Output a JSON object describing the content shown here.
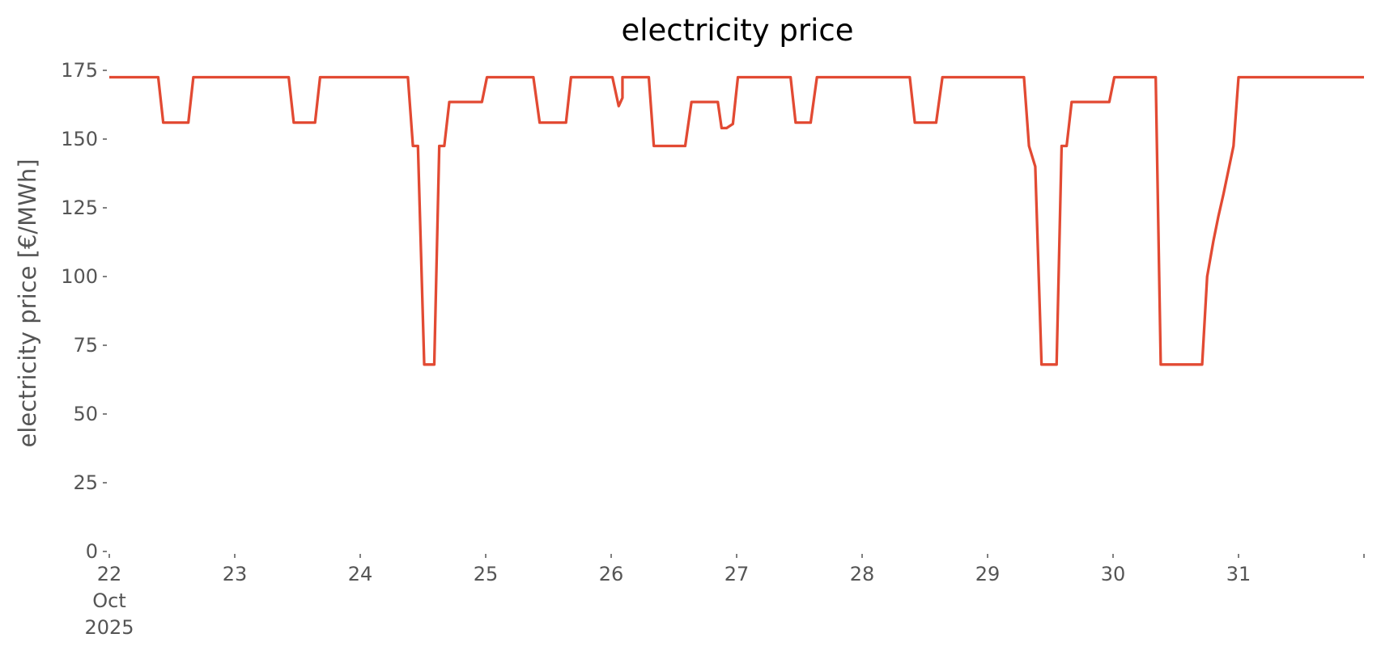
{
  "chart_data": {
    "type": "line",
    "title": "electricity price",
    "y_label": "electricity price [€/MWh]",
    "x": [
      22,
      22.39,
      22.43,
      22.63,
      22.67,
      23.43,
      23.47,
      23.64,
      23.68,
      24.38,
      24.42,
      24.46,
      24.51,
      24.59,
      24.63,
      24.67,
      24.71,
      24.97,
      25.01,
      25.38,
      25.43,
      25.64,
      25.68,
      26.01,
      26.06,
      26.09,
      26.09,
      26.3,
      26.34,
      26.59,
      26.64,
      26.85,
      26.88,
      26.92,
      26.97,
      27.01,
      27.43,
      27.47,
      27.59,
      27.64,
      28.38,
      28.42,
      28.59,
      28.64,
      29.29,
      29.33,
      29.38,
      29.43,
      29.55,
      29.59,
      29.63,
      29.67,
      29.97,
      30.01,
      30.34,
      30.38,
      30.71,
      30.75,
      30.8,
      30.84,
      30.88,
      30.96,
      31,
      32
    ],
    "series": [
      {
        "name": "electricity price",
        "color": "#e24a33",
        "values": [
          172.5,
          172.5,
          156,
          156,
          172.5,
          172.5,
          156,
          156,
          172.5,
          172.5,
          147.5,
          147.5,
          68,
          68,
          147.5,
          147.5,
          163.5,
          163.5,
          172.5,
          172.5,
          156,
          156,
          172.5,
          172.5,
          162,
          165,
          172.5,
          172.5,
          147.5,
          147.5,
          163.5,
          163.5,
          154,
          154,
          155.5,
          172.5,
          172.5,
          156,
          156,
          172.5,
          172.5,
          156,
          156,
          172.5,
          172.5,
          147.5,
          140,
          68,
          68,
          147.5,
          147.5,
          163.5,
          163.5,
          172.5,
          172.5,
          68,
          68,
          100,
          113,
          122,
          130,
          147.5,
          172.5,
          172.5
        ]
      }
    ],
    "xlim": [
      22,
      32
    ],
    "xticks": [
      {
        "value": 22,
        "label": "22 Oct 2025"
      },
      23,
      24,
      25,
      26,
      27,
      28,
      29,
      30,
      31,
      {
        "value": 32,
        "label": null
      }
    ],
    "ylim": [
      0,
      175
    ],
    "yticks": [
      0,
      25,
      50,
      75,
      100,
      125,
      150,
      175
    ],
    "grid": false
  }
}
